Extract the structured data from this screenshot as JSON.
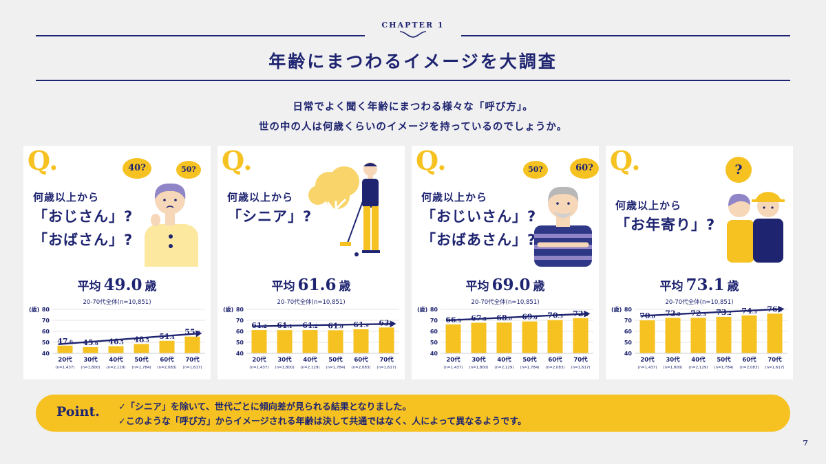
{
  "chapter": "CHAPTER 1",
  "title": "年齢にまつわるイメージを大調査",
  "intro": [
    "日常でよく聞く年齢にまつわる様々な「呼び方」。",
    "世の中の人は何歳くらいのイメージを持っているのでしょうか。"
  ],
  "q_mark": "Q.",
  "cards": [
    {
      "q_sub": "何歳以上から",
      "q_main": [
        "「おじさん」?",
        "「おばさん」?"
      ],
      "bubbles": [
        "40?",
        "50?"
      ],
      "avg_label": "平均",
      "avg_value": "49.0",
      "avg_unit": "歳",
      "note": "20-70代全体(n=10,851)"
    },
    {
      "q_sub": "何歳以上から",
      "q_main": [
        "「シニア」?"
      ],
      "bubbles": [],
      "avg_label": "平均",
      "avg_value": "61.6",
      "avg_unit": "歳",
      "note": "20-70代全体(n=10,851)"
    },
    {
      "q_sub": "何歳以上から",
      "q_main": [
        "「おじいさん」?",
        "「おばあさん」?"
      ],
      "bubbles": [
        "50?",
        "60?"
      ],
      "avg_label": "平均",
      "avg_value": "69.0",
      "avg_unit": "歳",
      "note": "20-70代全体(n=10,851)"
    },
    {
      "q_sub": "何歳以上から",
      "q_main": [
        "「お年寄り」?"
      ],
      "bubbles": [
        "?"
      ],
      "avg_label": "平均",
      "avg_value": "73.1",
      "avg_unit": "歳",
      "note": "20-70代全体(n=10,851)"
    }
  ],
  "chart_data": [
    {
      "type": "bar",
      "title": "",
      "ylabel": "(歳)",
      "ylim": [
        40,
        80
      ],
      "yticks": [
        40,
        50,
        60,
        70,
        80
      ],
      "categories": [
        "20代",
        "30代",
        "40代",
        "50代",
        "60代",
        "70代"
      ],
      "sample_sizes": [
        "(n=1,437)",
        "(n=1,800)",
        "(n=2,129)",
        "(n=1,784)",
        "(n=2,083)",
        "(n=1,617)"
      ],
      "values": [
        47.0,
        45.6,
        46.5,
        48.5,
        51.4,
        55.2
      ],
      "bar_color": "#f6c222",
      "trend_arrow": true
    },
    {
      "type": "bar",
      "title": "",
      "ylabel": "(歳)",
      "ylim": [
        40,
        80
      ],
      "yticks": [
        40,
        50,
        60,
        70,
        80
      ],
      "categories": [
        "20代",
        "30代",
        "40代",
        "50代",
        "60代",
        "70代"
      ],
      "sample_sizes": [
        "(n=1,437)",
        "(n=1,800)",
        "(n=2,129)",
        "(n=1,784)",
        "(n=2,083)",
        "(n=1,617)"
      ],
      "values": [
        61.2,
        61.1,
        61.2,
        61.0,
        61.9,
        63.5
      ],
      "bar_color": "#f6c222",
      "trend_arrow": true
    },
    {
      "type": "bar",
      "title": "",
      "ylabel": "(歳)",
      "ylim": [
        40,
        80
      ],
      "yticks": [
        40,
        50,
        60,
        70,
        80
      ],
      "categories": [
        "20代",
        "30代",
        "40代",
        "50代",
        "60代",
        "70代"
      ],
      "sample_sizes": [
        "(n=1,437)",
        "(n=1,800)",
        "(n=2,129)",
        "(n=1,784)",
        "(n=2,083)",
        "(n=1,617)"
      ],
      "values": [
        66.3,
        67.8,
        68.0,
        69.0,
        70.3,
        72.0
      ],
      "bar_color": "#f6c222",
      "trend_arrow": true
    },
    {
      "type": "bar",
      "title": "",
      "ylabel": "(歳)",
      "ylim": [
        40,
        80
      ],
      "yticks": [
        40,
        50,
        60,
        70,
        80
      ],
      "categories": [
        "20代",
        "30代",
        "40代",
        "50代",
        "60代",
        "70代"
      ],
      "sample_sizes": [
        "(n=1,437)",
        "(n=1,800)",
        "(n=2,129)",
        "(n=1,784)",
        "(n=2,083)",
        "(n=1,617)"
      ],
      "values": [
        70.0,
        72.2,
        72.3,
        73.2,
        74.5,
        76.1
      ],
      "bar_color": "#f6c222",
      "trend_arrow": true
    }
  ],
  "point": {
    "title": "Point.",
    "lines": [
      "✓「シニア」を除いて、世代ごとに傾向差が見られる結果となりました。",
      "✓このような「呼び方」からイメージされる年齢は決して共通ではなく、人によって異なるようです。"
    ]
  },
  "page_number": "7",
  "colors": {
    "navy": "#1e2470",
    "yellow": "#f6c222",
    "background": "#f0f0f0"
  }
}
